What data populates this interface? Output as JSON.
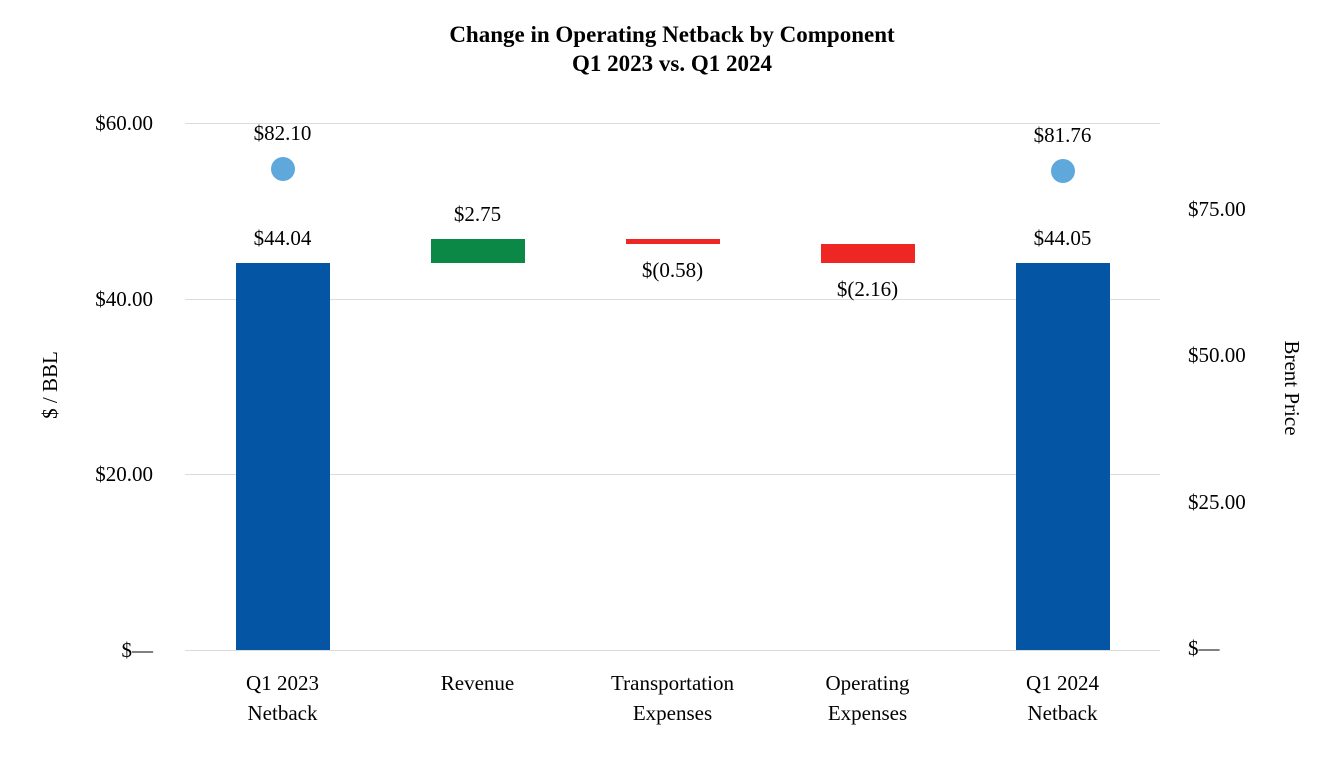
{
  "chart_data": {
    "type": "bar",
    "subtype": "waterfall-with-scatter",
    "title": "Change in Operating Netback by Component",
    "subtitle": "Q1 2023 vs. Q1 2024",
    "left_axis": {
      "label": "$ / BBL",
      "min": 0,
      "max": 60,
      "ticks": [
        {
          "value": 60,
          "label": "$60.00"
        },
        {
          "value": 40,
          "label": "$40.00"
        },
        {
          "value": 20,
          "label": "$20.00"
        },
        {
          "value": 0,
          "label": "$—"
        }
      ]
    },
    "right_axis": {
      "label": "Brent Price",
      "min": 0,
      "max": 90,
      "ticks": [
        {
          "value": 75,
          "label": "$75.00"
        },
        {
          "value": 50,
          "label": "$50.00"
        },
        {
          "value": 25,
          "label": "$25.00"
        },
        {
          "value": 0,
          "label": "$—"
        }
      ]
    },
    "categories": [
      {
        "id": "q1-2023-netback",
        "label_lines": [
          "Q1 2023",
          "Netback"
        ]
      },
      {
        "id": "revenue",
        "label_lines": [
          "Revenue"
        ]
      },
      {
        "id": "transportation-expenses",
        "label_lines": [
          "Transportation",
          "Expenses"
        ]
      },
      {
        "id": "operating-expenses",
        "label_lines": [
          "Operating",
          "Expenses"
        ]
      },
      {
        "id": "q1-2024-netback",
        "label_lines": [
          "Q1 2024",
          "Netback"
        ]
      }
    ],
    "bars": [
      {
        "category_index": 0,
        "start": 0,
        "end": 44.04,
        "delta": 44.04,
        "role": "total",
        "color": "#0455a4",
        "label": "$44.04",
        "label_position": "above"
      },
      {
        "category_index": 1,
        "start": 44.04,
        "end": 46.79,
        "delta": 2.75,
        "role": "increase",
        "color": "#0b8746",
        "label": "$2.75",
        "label_position": "above"
      },
      {
        "category_index": 2,
        "start": 46.79,
        "end": 46.21,
        "delta": -0.58,
        "role": "decrease",
        "color": "#ee2724",
        "label": "$(0.58)",
        "label_position": "below"
      },
      {
        "category_index": 3,
        "start": 46.21,
        "end": 44.05,
        "delta": -2.16,
        "role": "decrease",
        "color": "#ee2724",
        "label": "$(2.16)",
        "label_position": "below"
      },
      {
        "category_index": 4,
        "start": 0,
        "end": 44.05,
        "delta": 44.05,
        "role": "total",
        "color": "#0455a4",
        "label": "$44.05",
        "label_position": "above"
      }
    ],
    "scatter_points": [
      {
        "category_index": 0,
        "value": 82.1,
        "label": "$82.10",
        "color": "#5fa8dc"
      },
      {
        "category_index": 4,
        "value": 81.76,
        "label": "$81.76",
        "color": "#5fa8dc"
      }
    ],
    "colors": {
      "total_bar": "#0455a4",
      "increase_bar": "#0b8746",
      "decrease_bar": "#ee2724",
      "scatter": "#5fa8dc",
      "gridline": "#dcdcdc",
      "text": "#000000"
    },
    "layout_hints": {
      "grid": "horizontal-left-axis-only",
      "legend": "none"
    }
  }
}
